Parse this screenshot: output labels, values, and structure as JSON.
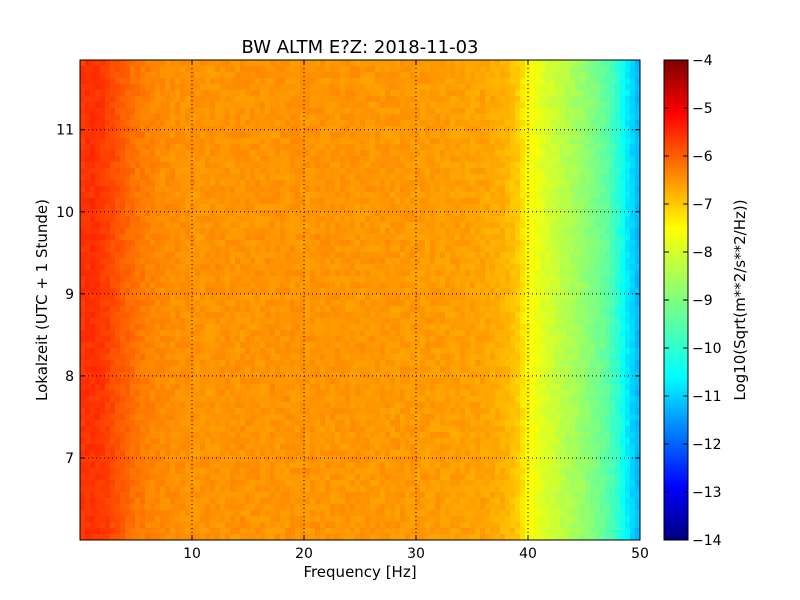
{
  "chart_data": {
    "type": "heatmap",
    "title": "BW ALTM E?Z: 2018-11-03",
    "xlabel": "Frequency [Hz]",
    "ylabel": "Lokalzeit (UTC + 1 Stunde)",
    "xlim": [
      0,
      50
    ],
    "ylim": [
      11.85,
      6.0
    ],
    "x_ticks": [
      10,
      20,
      30,
      40,
      50
    ],
    "x_tick_labels": [
      "10",
      "20",
      "30",
      "40",
      "50"
    ],
    "y_ticks": [
      7,
      8,
      9,
      10,
      11
    ],
    "y_tick_labels": [
      "7",
      "8",
      "9",
      "10",
      "11"
    ],
    "grid": true,
    "colorscale": "jet",
    "colorbar": {
      "label": "Log10(Sqrt(m**2/s**2/Hz))",
      "range": [
        -14,
        -4
      ],
      "ticks": [
        -4,
        -5,
        -6,
        -7,
        -8,
        -9,
        -10,
        -11,
        -12,
        -13,
        -14
      ],
      "tick_labels": [
        "−4",
        "−5",
        "−6",
        "−7",
        "−8",
        "−9",
        "−10",
        "−11",
        "−12",
        "−13",
        "−14"
      ]
    },
    "spectrum_profile": {
      "frequency": [
        0,
        1,
        2,
        3,
        4,
        5,
        7,
        10,
        20,
        30,
        36,
        38,
        39,
        40,
        41,
        43,
        45,
        47,
        48,
        49,
        50
      ],
      "value": [
        -5.8,
        -5.7,
        -5.8,
        -6.0,
        -6.2,
        -6.4,
        -6.6,
        -6.7,
        -6.7,
        -6.75,
        -6.85,
        -7.0,
        -7.2,
        -7.7,
        -8.0,
        -8.4,
        -8.8,
        -9.3,
        -9.8,
        -10.5,
        -11.0
      ]
    },
    "bands": [
      {
        "time": 8.4,
        "value": -6.1
      },
      {
        "time": 9.05,
        "value": -5.6
      },
      {
        "time": 10.18,
        "value": -6.3
      },
      {
        "time": 10.72,
        "value": -5.5
      },
      {
        "time": 11.55,
        "value": -6.3
      }
    ]
  }
}
